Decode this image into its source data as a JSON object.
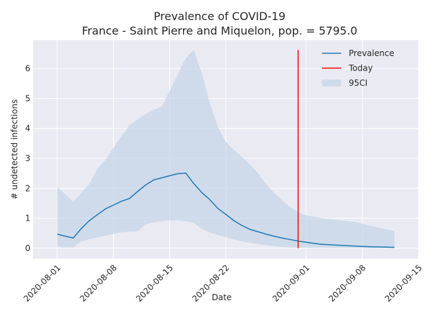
{
  "chart_data": {
    "type": "line",
    "title": "Prevalence of COVID-19",
    "subtitle": "France - Saint Pierre and Miquelon, pop. = 5795.0",
    "xlabel": "Date",
    "ylabel": "# undetected infections",
    "x_axis": "date",
    "xlim": [
      "2020-07-29",
      "2020-09-15"
    ],
    "ylim": [
      -0.35,
      6.95
    ],
    "x_ticks": [
      "2020-08-01",
      "2020-08-08",
      "2020-08-15",
      "2020-08-22",
      "2020-09-01",
      "2020-09-08",
      "2020-09-15"
    ],
    "y_ticks": [
      0,
      1,
      2,
      3,
      4,
      5,
      6
    ],
    "grid": true,
    "legend_position": "top-right",
    "colors": {
      "background": "#eaeaf2",
      "grid": "#ffffff",
      "prevalence": "#1f77b4",
      "today": "#ff0000",
      "ci": "#c5d5e8"
    },
    "legend": [
      {
        "label": "Prevalence",
        "kind": "line",
        "color": "#1f77b4"
      },
      {
        "label": "Today",
        "kind": "line",
        "color": "#ff0000"
      },
      {
        "label": "95CI",
        "kind": "patch",
        "color": "#c5d5e8"
      }
    ],
    "series": [
      {
        "name": "Prevalence",
        "x": [
          "2020-08-01",
          "2020-08-02",
          "2020-08-03",
          "2020-08-04",
          "2020-08-05",
          "2020-08-06",
          "2020-08-07",
          "2020-08-08",
          "2020-08-09",
          "2020-08-10",
          "2020-08-11",
          "2020-08-12",
          "2020-08-13",
          "2020-08-14",
          "2020-08-15",
          "2020-08-16",
          "2020-08-17",
          "2020-08-18",
          "2020-08-19",
          "2020-08-20",
          "2020-08-21",
          "2020-08-22",
          "2020-08-23",
          "2020-08-24",
          "2020-08-25",
          "2020-08-26",
          "2020-08-27",
          "2020-08-28",
          "2020-08-29",
          "2020-08-30",
          "2020-08-31",
          "2020-09-01",
          "2020-09-02",
          "2020-09-03",
          "2020-09-04",
          "2020-09-05",
          "2020-09-06",
          "2020-09-07",
          "2020-09-08",
          "2020-09-09",
          "2020-09-10",
          "2020-09-11",
          "2020-09-12"
        ],
        "y": [
          0.47,
          0.4,
          0.34,
          0.66,
          0.92,
          1.12,
          1.31,
          1.44,
          1.57,
          1.66,
          1.89,
          2.11,
          2.28,
          2.35,
          2.42,
          2.49,
          2.51,
          2.16,
          1.86,
          1.62,
          1.33,
          1.13,
          0.92,
          0.76,
          0.63,
          0.55,
          0.47,
          0.4,
          0.34,
          0.29,
          0.24,
          0.2,
          0.16,
          0.13,
          0.115,
          0.1,
          0.085,
          0.072,
          0.06,
          0.05,
          0.043,
          0.037,
          0.03
        ]
      },
      {
        "name": "Today",
        "x": [
          "2020-08-31",
          "2020-08-31"
        ],
        "y": [
          0,
          6.62
        ]
      }
    ],
    "ci_95": {
      "x": [
        "2020-08-01",
        "2020-08-02",
        "2020-08-03",
        "2020-08-04",
        "2020-08-05",
        "2020-08-06",
        "2020-08-07",
        "2020-08-08",
        "2020-08-09",
        "2020-08-10",
        "2020-08-11",
        "2020-08-12",
        "2020-08-13",
        "2020-08-14",
        "2020-08-15",
        "2020-08-16",
        "2020-08-17",
        "2020-08-18",
        "2020-08-19",
        "2020-08-20",
        "2020-08-21",
        "2020-08-22",
        "2020-08-23",
        "2020-08-24",
        "2020-08-25",
        "2020-08-26",
        "2020-08-27",
        "2020-08-28",
        "2020-08-29",
        "2020-08-30",
        "2020-08-31",
        "2020-09-01",
        "2020-09-02",
        "2020-09-03",
        "2020-09-04",
        "2020-09-05",
        "2020-09-06",
        "2020-09-07",
        "2020-09-08",
        "2020-09-09",
        "2020-09-10",
        "2020-09-11",
        "2020-09-12"
      ],
      "lower": [
        0.05,
        0.03,
        0.02,
        0.22,
        0.3,
        0.36,
        0.42,
        0.48,
        0.53,
        0.55,
        0.56,
        0.8,
        0.86,
        0.9,
        0.93,
        0.93,
        0.9,
        0.85,
        0.65,
        0.52,
        0.44,
        0.36,
        0.29,
        0.23,
        0.18,
        0.14,
        0.1,
        0.07,
        0.04,
        0.03,
        0.02,
        0.015,
        0.012,
        0.01,
        0.008,
        0.007,
        0.006,
        0.005,
        0.004,
        0.003,
        0.003,
        0.002,
        0.002
      ],
      "upper": [
        2.05,
        1.8,
        1.55,
        1.85,
        2.15,
        2.65,
        2.95,
        3.35,
        3.75,
        4.1,
        4.3,
        4.48,
        4.62,
        4.72,
        5.25,
        5.8,
        6.35,
        6.62,
        5.85,
        4.85,
        4.05,
        3.55,
        3.28,
        3.05,
        2.8,
        2.5,
        2.15,
        1.85,
        1.6,
        1.38,
        1.2,
        1.1,
        1.05,
        1.0,
        0.97,
        0.94,
        0.91,
        0.88,
        0.82,
        0.75,
        0.69,
        0.63,
        0.58
      ]
    }
  }
}
